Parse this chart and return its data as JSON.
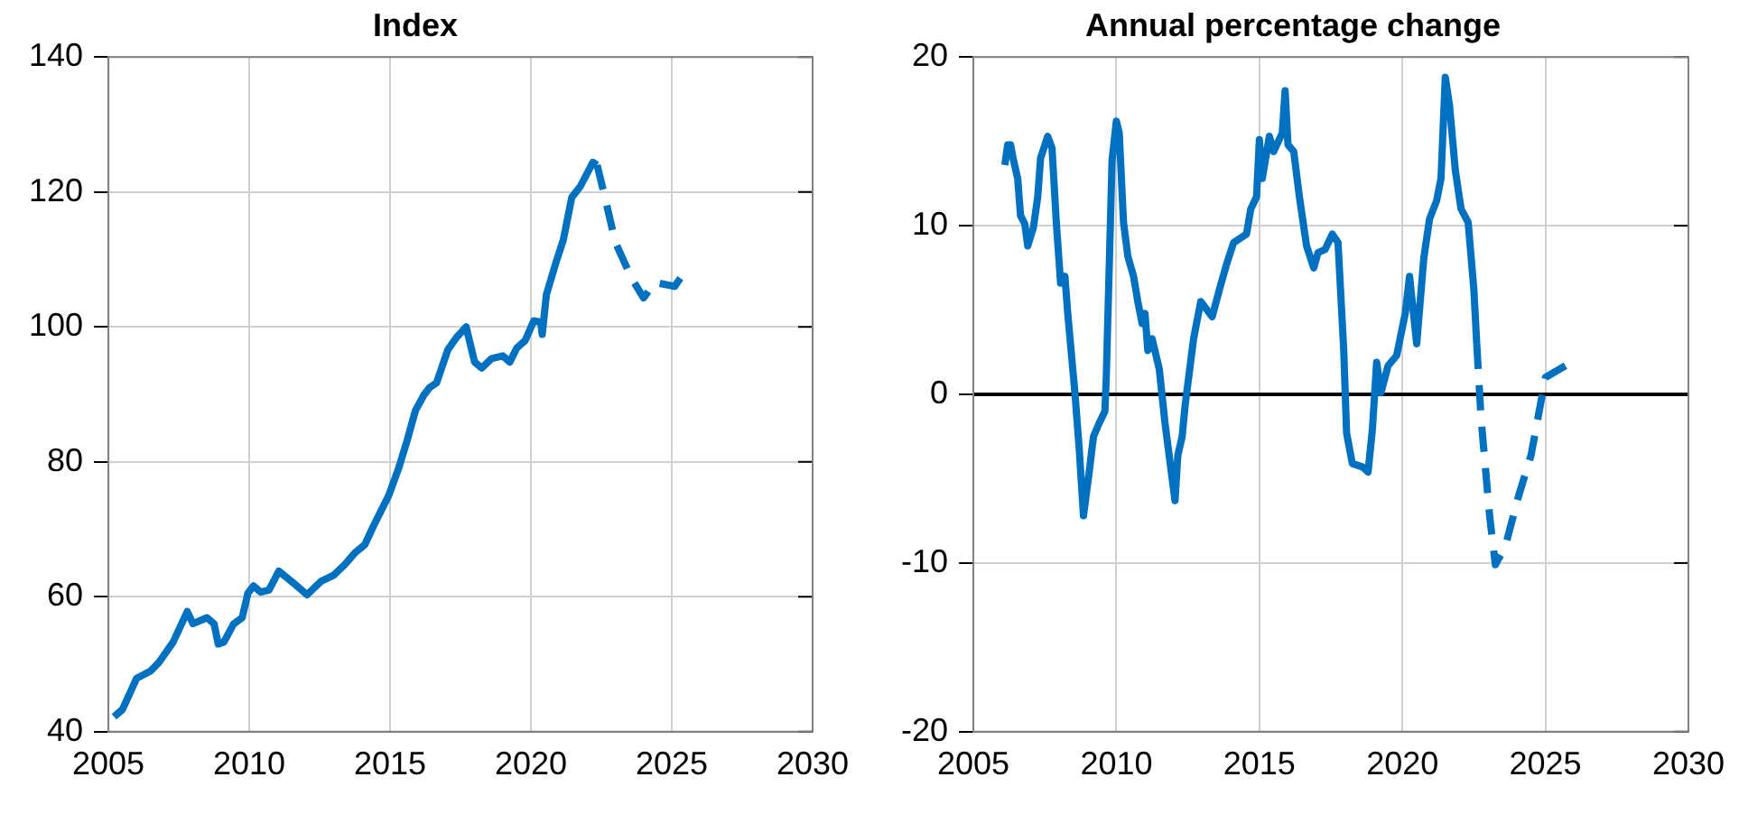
{
  "chart_data": [
    {
      "type": "line",
      "title": "Index",
      "xlim": [
        2005,
        2030
      ],
      "xticks": [
        2005,
        2010,
        2015,
        2020,
        2025,
        2030
      ],
      "ylim": [
        40,
        140
      ],
      "yticks": [
        40,
        60,
        80,
        100,
        120,
        140
      ],
      "grid": true,
      "legend": false,
      "series": [
        {
          "color": "#0070c0",
          "line_style": "solid",
          "x": [
            2005.2,
            2005.5,
            2006.0,
            2006.5,
            2006.8,
            2007.3,
            2007.8,
            2008.0,
            2008.5,
            2008.75,
            2008.9,
            2009.1,
            2009.45,
            2009.75,
            2009.95,
            2010.15,
            2010.4,
            2010.7,
            2011.05,
            2011.55,
            2012.05,
            2012.55,
            2013.0,
            2013.4,
            2013.75,
            2014.1,
            2014.4,
            2014.95,
            2015.3,
            2015.6,
            2015.9,
            2016.2,
            2016.4,
            2016.65,
            2017.05,
            2017.35,
            2017.7,
            2018.0,
            2018.25,
            2018.6,
            2019.0,
            2019.25,
            2019.5,
            2019.8,
            2020.1,
            2020.35,
            2020.4,
            2020.55,
            2020.9,
            2021.15,
            2021.45,
            2021.75,
            2022.2,
            2022.35
          ],
          "values": [
            42.2,
            43.3,
            47.9,
            49,
            50.3,
            53.3,
            57.8,
            56,
            56.9,
            56,
            53,
            53.3,
            56,
            56.9,
            60.5,
            61.6,
            60.7,
            61,
            63.8,
            62.1,
            60.3,
            62.3,
            63.2,
            64.8,
            66.5,
            67.7,
            70.4,
            75,
            79,
            83.1,
            87.6,
            89.9,
            91,
            91.7,
            96.6,
            98.4,
            100,
            94.8,
            93.9,
            95.3,
            95.7,
            94.8,
            96.9,
            98,
            100.9,
            100.7,
            98.9,
            104.8,
            109.7,
            112.9,
            119.2,
            120.8,
            124.4,
            124
          ]
        },
        {
          "color": "#0070c0",
          "line_style": "dashed",
          "x": [
            2022.35,
            2022.65,
            2023.0,
            2023.6,
            2024.0,
            2024.4,
            2025.1,
            2025.5
          ],
          "values": [
            124,
            118.8,
            112.5,
            107,
            104.3,
            106.6,
            106,
            108.4
          ]
        }
      ]
    },
    {
      "type": "line",
      "title": "Annual percentage change",
      "xlim": [
        2005,
        2030
      ],
      "xticks": [
        2005,
        2010,
        2015,
        2020,
        2025,
        2030
      ],
      "ylim": [
        -20,
        20
      ],
      "yticks": [
        -20,
        -10,
        0,
        10,
        20
      ],
      "grid": true,
      "legend": false,
      "ref_lines": [
        {
          "axis": "y",
          "value": 0,
          "color": "#000000"
        }
      ],
      "series": [
        {
          "color": "#0070c0",
          "line_style": "solid",
          "x": [
            2006.1,
            2006.2,
            2006.3,
            2006.4,
            2006.55,
            2006.65,
            2006.8,
            2006.9,
            2007.1,
            2007.25,
            2007.35,
            2007.6,
            2007.75,
            2007.9,
            2008.05,
            2008.2,
            2008.3,
            2008.55,
            2008.7,
            2008.85,
            2008.95,
            2009.05,
            2009.2,
            2009.4,
            2009.6,
            2009.65,
            2009.85,
            2010.0,
            2010.1,
            2010.25,
            2010.4,
            2010.6,
            2010.75,
            2010.9,
            2011.0,
            2011.1,
            2011.25,
            2011.5,
            2011.7,
            2012.05,
            2012.15,
            2012.3,
            2012.4,
            2012.7,
            2012.95,
            2013.35,
            2013.6,
            2013.85,
            2014.1,
            2014.55,
            2014.7,
            2014.9,
            2015.0,
            2015.1,
            2015.35,
            2015.5,
            2015.8,
            2015.9,
            2016.0,
            2016.2,
            2016.4,
            2016.65,
            2016.9,
            2017.05,
            2017.3,
            2017.55,
            2017.75,
            2017.95,
            2018.05,
            2018.25,
            2018.6,
            2018.8,
            2018.95,
            2019.1,
            2019.25,
            2019.5,
            2019.8,
            2020.1,
            2020.25,
            2020.5,
            2020.75,
            2020.95,
            2021.2,
            2021.35,
            2021.5,
            2021.65,
            2021.85,
            2022.05,
            2022.3,
            2022.5,
            2022.6
          ],
          "values": [
            13.6,
            14.8,
            14.8,
            13.9,
            12.8,
            10.6,
            10.1,
            8.8,
            9.9,
            11.7,
            14,
            15.3,
            14.6,
            10.2,
            6.6,
            7,
            4.8,
            0.1,
            -3.2,
            -7.2,
            -5.9,
            -4.6,
            -2.5,
            -1.7,
            -1,
            1.2,
            13.9,
            16.2,
            15.5,
            10.2,
            8.2,
            7,
            5.5,
            4.2,
            4.8,
            2.6,
            3.3,
            1.5,
            -1.7,
            -6.3,
            -3.6,
            -2.5,
            -0.7,
            3.3,
            5.5,
            4.6,
            6.2,
            7.7,
            9,
            9.5,
            11,
            11.7,
            15.1,
            12.8,
            15.3,
            14.4,
            15.5,
            18,
            14.8,
            14.4,
            11.7,
            8.8,
            7.5,
            8.4,
            8.6,
            9.5,
            9,
            2.6,
            -2.3,
            -4.1,
            -4.3,
            -4.6,
            -2.1,
            1.9,
            0.1,
            1.7,
            2.3,
            4.8,
            7,
            3,
            8.1,
            10.4,
            11.5,
            12.8,
            18.8,
            17.1,
            13.3,
            11,
            10.2,
            6.2,
            3
          ]
        },
        {
          "color": "#0070c0",
          "line_style": "dashed",
          "x": [
            2022.6,
            2022.75,
            2023.05,
            2023.25,
            2023.6,
            2024.05,
            2024.5,
            2025.0,
            2025.7
          ],
          "values": [
            3,
            -1.4,
            -7.2,
            -10.1,
            -9,
            -6.1,
            -3.6,
            1,
            1.7
          ]
        }
      ]
    }
  ]
}
